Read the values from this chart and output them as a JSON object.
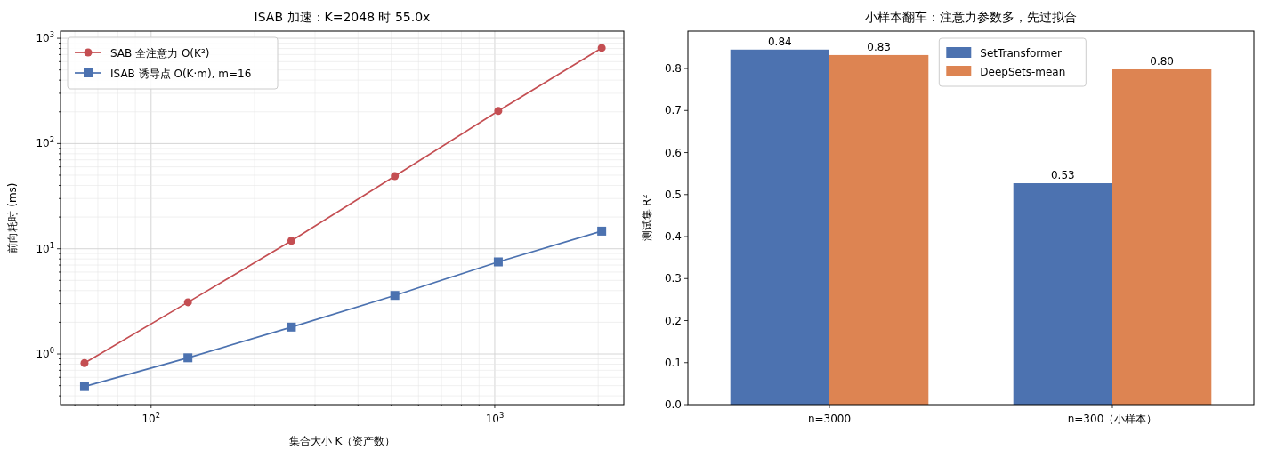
{
  "chart_data": [
    {
      "type": "line",
      "title": "ISAB 加速：K=2048 时 55.0x",
      "xlabel": "集合大小 K（资产数）",
      "ylabel": "前向耗时 (ms)",
      "log": "xy",
      "grid": true,
      "legend": "top left",
      "x": [
        64,
        128,
        256,
        512,
        1024,
        2048
      ],
      "xlim": [
        54.5,
        2375
      ],
      "ylim": [
        0.33,
        1170
      ],
      "xticks": [
        {
          "value": 100,
          "label": "10$^{2}$"
        },
        {
          "value": 1000,
          "label": "10$^{3}$"
        }
      ],
      "yticks": [
        {
          "value": 1,
          "label": "10$^{0}$"
        },
        {
          "value": 10,
          "label": "10$^{1}$"
        },
        {
          "value": 100,
          "label": "10$^{2}$"
        },
        {
          "value": 1000,
          "label": "10$^{3}$"
        }
      ],
      "series": [
        {
          "name": "SAB 全注意力 O(K²)",
          "color": "#c44e52",
          "marker": "circle",
          "values": [
            0.82,
            3.1,
            11.9,
            49,
            204,
            810
          ]
        },
        {
          "name": "ISAB 诱导点 O(K·m), m=16",
          "color": "#4c72b0",
          "marker": "square",
          "values": [
            0.49,
            0.92,
            1.8,
            3.6,
            7.5,
            14.7
          ]
        }
      ]
    },
    {
      "type": "bar",
      "title": "小样本翻车：注意力参数多，先过拟合",
      "ylabel": "测试集 R²",
      "legend": "top",
      "categories": [
        "n=3000",
        "n=300（小样本）"
      ],
      "ylim": [
        0,
        0.889
      ],
      "yticks": [
        {
          "value": 0,
          "label": "0.0"
        },
        0.1,
        0.2,
        0.3,
        0.4,
        0.5,
        0.6,
        0.7,
        0.8
      ],
      "series": [
        {
          "name": "SetTransformer",
          "color": "#4c72b0",
          "values": [
            0.845,
            0.527
          ],
          "value_labels": [
            "0.84",
            "0.53"
          ]
        },
        {
          "name": "DeepSets-mean",
          "color": "#dd8452",
          "values": [
            0.832,
            0.798
          ],
          "value_labels": [
            "0.83",
            "0.80"
          ]
        }
      ]
    }
  ]
}
